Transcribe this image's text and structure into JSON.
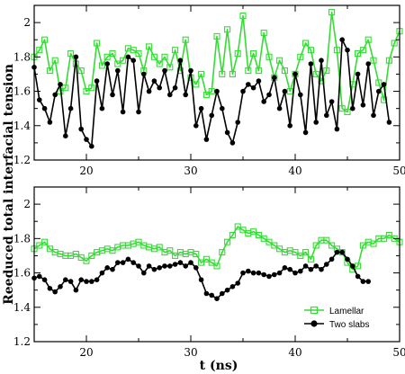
{
  "chart_data": [
    {
      "type": "line",
      "xlim": [
        15,
        50
      ],
      "ylim": [
        1.2,
        2.1
      ],
      "x_ticks": [
        20,
        30,
        40,
        50
      ],
      "y_ticks": [
        1.2,
        1.4,
        1.6,
        1.8,
        2.0
      ],
      "x_tick_labels": [
        "20",
        "30",
        "40",
        "50"
      ],
      "y_tick_labels": [
        "1.2",
        "1.4",
        "1.6",
        "1.8",
        "2"
      ],
      "grid": false,
      "series": [
        {
          "name": "Lamellar",
          "color": "#33dd33",
          "marker": "square-open",
          "x": [
            15.0,
            15.5,
            16.0,
            16.5,
            17.0,
            17.5,
            18.0,
            18.5,
            19.0,
            19.5,
            20.0,
            20.5,
            21.0,
            21.5,
            22.0,
            22.5,
            23.0,
            23.5,
            24.0,
            24.5,
            25.0,
            25.5,
            26.0,
            26.5,
            27.0,
            27.5,
            28.0,
            28.5,
            29.0,
            29.5,
            30.0,
            30.5,
            31.0,
            31.5,
            32.0,
            32.5,
            33.0,
            33.5,
            34.0,
            34.5,
            35.0,
            35.5,
            36.0,
            36.5,
            37.0,
            37.5,
            38.0,
            38.5,
            39.0,
            39.5,
            40.0,
            40.5,
            41.0,
            41.5,
            42.0,
            42.5,
            43.0,
            43.5,
            44.0,
            44.5,
            45.0,
            45.5,
            46.0,
            46.5,
            47.0,
            47.5,
            48.0,
            48.5,
            49.0,
            49.5,
            50.0
          ],
          "y": [
            1.8,
            1.84,
            1.9,
            1.72,
            1.78,
            1.6,
            1.62,
            1.82,
            1.76,
            1.72,
            1.6,
            1.62,
            1.88,
            1.75,
            1.8,
            1.82,
            1.76,
            1.78,
            1.85,
            1.84,
            1.82,
            1.72,
            1.86,
            1.8,
            1.76,
            1.8,
            1.74,
            1.84,
            1.72,
            1.9,
            1.68,
            1.64,
            1.7,
            1.58,
            1.6,
            1.92,
            1.7,
            1.96,
            1.7,
            1.82,
            2.04,
            1.72,
            1.82,
            1.72,
            1.94,
            1.8,
            1.68,
            1.78,
            1.72,
            1.6,
            1.7,
            1.8,
            1.88,
            1.84,
            1.7,
            1.66,
            1.72,
            2.06,
            1.84,
            1.5,
            1.48,
            1.64,
            1.82,
            1.84,
            1.9,
            1.78,
            1.65,
            1.55,
            1.78,
            1.88,
            1.95
          ]
        },
        {
          "name": "Two slabs",
          "color": "#000000",
          "marker": "circle-filled",
          "x": [
            15.0,
            15.5,
            16.0,
            16.5,
            17.0,
            17.5,
            18.0,
            18.5,
            19.0,
            19.5,
            20.0,
            20.5,
            21.0,
            21.5,
            22.0,
            22.5,
            23.0,
            23.5,
            24.0,
            24.5,
            25.0,
            25.5,
            26.0,
            26.5,
            27.0,
            27.5,
            28.0,
            28.5,
            29.0,
            29.5,
            30.0,
            30.5,
            31.0,
            31.5,
            32.0,
            32.5,
            33.0,
            33.5,
            34.0,
            34.5,
            35.0,
            35.5,
            36.0,
            36.5,
            37.0,
            37.5,
            38.0,
            38.5,
            39.0,
            39.5,
            40.0,
            40.5,
            41.0,
            41.5,
            42.0,
            42.5,
            43.0,
            43.5,
            44.0,
            44.5,
            45.0,
            45.5,
            46.0,
            46.5,
            47.0,
            47.5,
            48.0,
            48.5,
            49.0,
            49.5,
            50.0
          ],
          "y": [
            1.74,
            1.55,
            1.5,
            1.42,
            1.58,
            1.64,
            1.34,
            1.5,
            1.8,
            1.38,
            1.32,
            1.28,
            1.66,
            1.5,
            1.76,
            1.58,
            1.72,
            1.48,
            1.8,
            1.78,
            1.48,
            1.7,
            1.6,
            1.66,
            1.62,
            1.72,
            1.58,
            1.62,
            1.78,
            1.58,
            1.72,
            1.4,
            1.5,
            1.32,
            1.46,
            1.6,
            1.5,
            1.36,
            1.3,
            1.42,
            1.6,
            1.64,
            1.62,
            1.66,
            1.54,
            1.58,
            1.68,
            1.5,
            1.6,
            1.4,
            1.7,
            1.58,
            1.36,
            1.76,
            1.42,
            1.78,
            1.46,
            1.54,
            1.38,
            1.9,
            1.84,
            1.5,
            1.7,
            1.52,
            1.76,
            1.46,
            1.6,
            1.64,
            1.42,
            null,
            null
          ]
        }
      ]
    },
    {
      "type": "line",
      "xlim": [
        15,
        50
      ],
      "ylim": [
        1.2,
        2.1
      ],
      "x_ticks": [
        20,
        30,
        40,
        50
      ],
      "y_ticks": [
        1.2,
        1.4,
        1.6,
        1.8,
        2.0
      ],
      "x_tick_labels": [
        "20",
        "30",
        "40",
        "50"
      ],
      "y_tick_labels": [
        "1.2",
        "1.4",
        "1.6",
        "1.8",
        "2"
      ],
      "xlabel": "t (ns)",
      "grid": false,
      "legend_position": "bottom-right",
      "series": [
        {
          "name": "Lamellar",
          "color": "#33dd33",
          "marker": "square-open",
          "x": [
            15.0,
            15.5,
            16.0,
            16.5,
            17.0,
            17.5,
            18.0,
            18.5,
            19.0,
            19.5,
            20.0,
            20.5,
            21.0,
            21.5,
            22.0,
            22.5,
            23.0,
            23.5,
            24.0,
            24.5,
            25.0,
            25.5,
            26.0,
            26.5,
            27.0,
            27.5,
            28.0,
            28.5,
            29.0,
            29.5,
            30.0,
            30.5,
            31.0,
            31.5,
            32.0,
            32.5,
            33.0,
            33.5,
            34.0,
            34.5,
            35.0,
            35.5,
            36.0,
            36.5,
            37.0,
            37.5,
            38.0,
            38.5,
            39.0,
            39.5,
            40.0,
            40.5,
            41.0,
            41.5,
            42.0,
            42.5,
            43.0,
            43.5,
            44.0,
            44.5,
            45.0,
            45.5,
            46.0,
            46.5,
            47.0,
            47.5,
            48.0,
            48.5,
            49.0,
            49.5,
            50.0
          ],
          "y": [
            1.74,
            1.76,
            1.78,
            1.74,
            1.72,
            1.71,
            1.7,
            1.7,
            1.71,
            1.69,
            1.67,
            1.7,
            1.72,
            1.73,
            1.74,
            1.73,
            1.75,
            1.76,
            1.76,
            1.77,
            1.78,
            1.76,
            1.75,
            1.74,
            1.75,
            1.72,
            1.73,
            1.7,
            1.72,
            1.71,
            1.72,
            1.71,
            1.66,
            1.68,
            1.66,
            1.64,
            1.72,
            1.78,
            1.82,
            1.87,
            1.85,
            1.83,
            1.84,
            1.82,
            1.8,
            1.78,
            1.76,
            1.74,
            1.72,
            1.73,
            1.72,
            1.7,
            1.72,
            1.68,
            1.76,
            1.79,
            1.79,
            1.76,
            1.74,
            1.72,
            1.66,
            1.62,
            1.64,
            1.76,
            1.78,
            1.77,
            1.8,
            1.8,
            1.82,
            1.8,
            1.78
          ]
        },
        {
          "name": "Two slabs",
          "color": "#000000",
          "marker": "circle-filled",
          "x": [
            15.0,
            15.5,
            16.0,
            16.5,
            17.0,
            17.5,
            18.0,
            18.5,
            19.0,
            19.5,
            20.0,
            20.5,
            21.0,
            21.5,
            22.0,
            22.5,
            23.0,
            23.5,
            24.0,
            24.5,
            25.0,
            25.5,
            26.0,
            26.5,
            27.0,
            27.5,
            28.0,
            28.5,
            29.0,
            29.5,
            30.0,
            30.5,
            31.0,
            31.5,
            32.0,
            32.5,
            33.0,
            33.5,
            34.0,
            34.5,
            35.0,
            35.5,
            36.0,
            36.5,
            37.0,
            37.5,
            38.0,
            38.5,
            39.0,
            39.5,
            40.0,
            40.5,
            41.0,
            41.5,
            42.0,
            42.5,
            43.0,
            43.5,
            44.0,
            44.5,
            45.0,
            45.5,
            46.0,
            46.5,
            47.0
          ],
          "y": [
            1.57,
            1.58,
            1.56,
            1.51,
            1.49,
            1.52,
            1.56,
            1.55,
            1.5,
            1.56,
            1.55,
            1.55,
            1.56,
            1.6,
            1.63,
            1.62,
            1.66,
            1.66,
            1.68,
            1.66,
            1.64,
            1.6,
            1.64,
            1.62,
            1.63,
            1.64,
            1.64,
            1.65,
            1.66,
            1.64,
            1.66,
            1.63,
            1.56,
            1.48,
            1.47,
            1.45,
            1.48,
            1.5,
            1.52,
            1.54,
            1.6,
            1.61,
            1.6,
            1.6,
            1.59,
            1.58,
            1.59,
            1.6,
            1.63,
            1.62,
            1.6,
            1.61,
            1.64,
            1.62,
            1.64,
            1.62,
            1.65,
            1.68,
            1.72,
            1.72,
            1.68,
            1.64,
            1.58,
            1.55,
            1.55
          ]
        }
      ]
    }
  ],
  "ylabel": "Reeduced total interfacial tension",
  "legend": {
    "items": [
      {
        "label": "Lamellar",
        "color": "#33dd33",
        "marker": "square-open"
      },
      {
        "label": "Two slabs",
        "color": "#000000",
        "marker": "circle-filled"
      }
    ]
  }
}
